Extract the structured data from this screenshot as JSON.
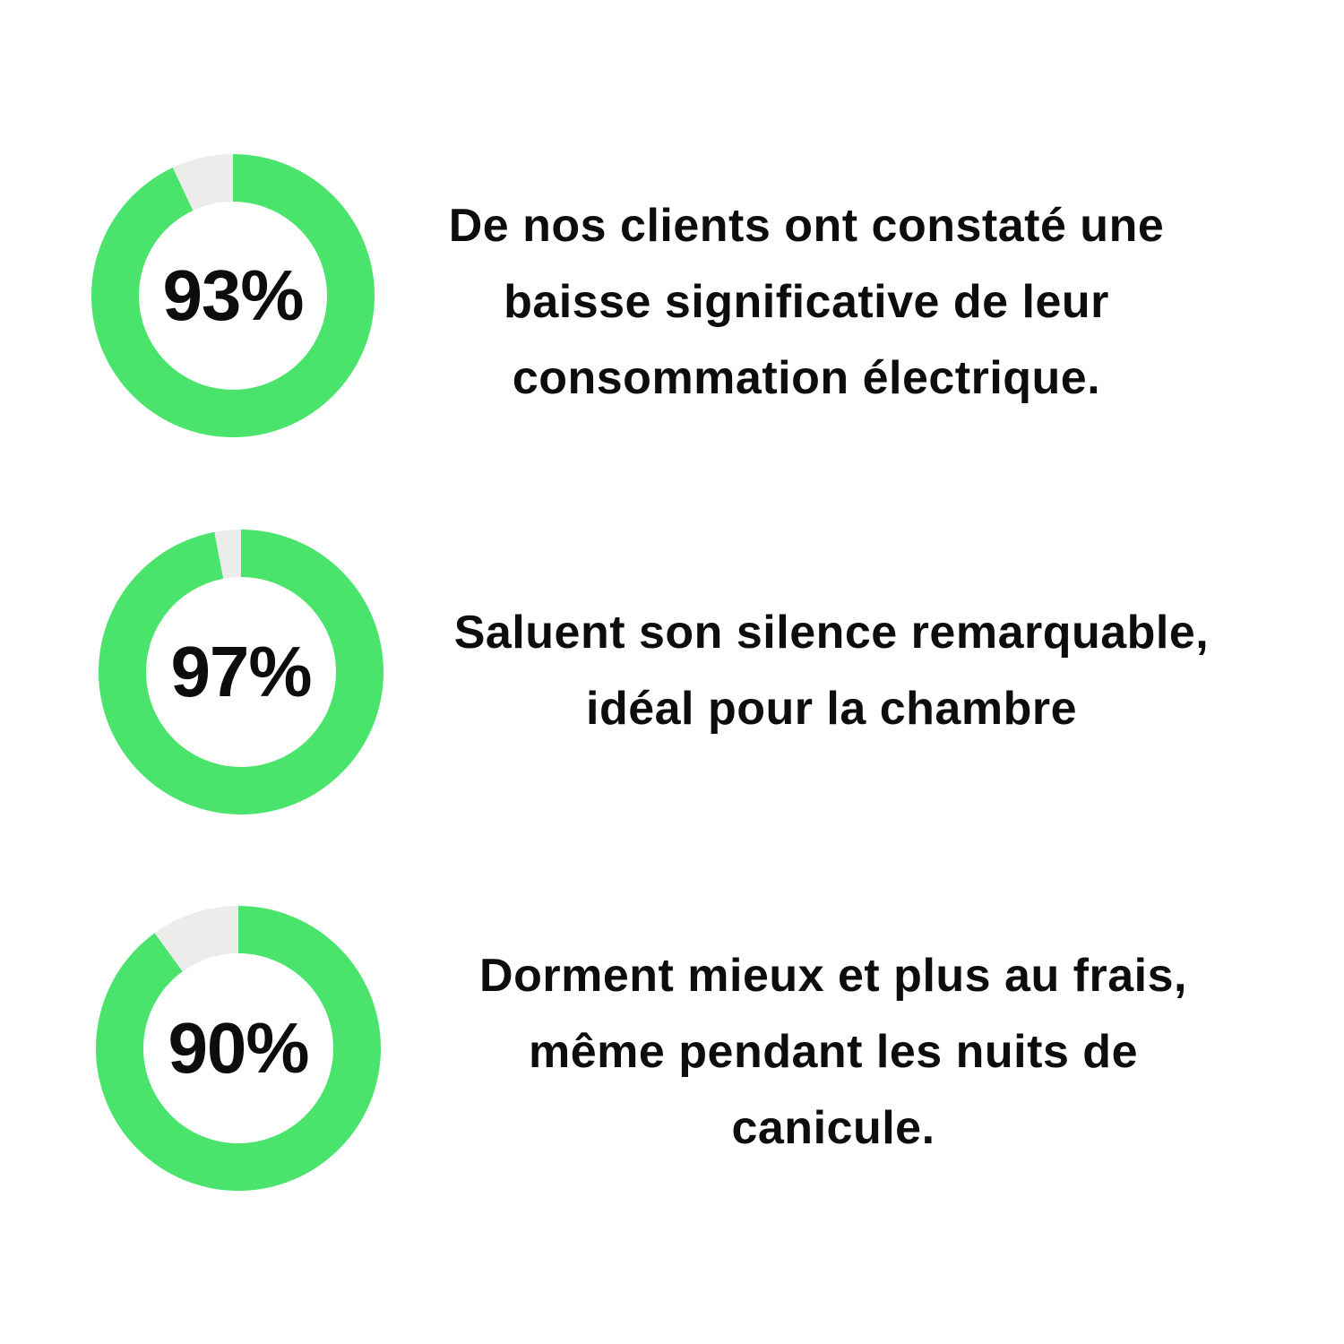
{
  "page": {
    "background": "#FFFFFF",
    "text_color": "#0D0D0D"
  },
  "chart_data": [
    {
      "type": "pie",
      "subtype": "donut",
      "values": [
        93,
        7
      ],
      "percent": 93,
      "center_label": "93%",
      "filled_color": "#4AE46C",
      "empty_color": "#ECECEA",
      "start_angle_deg": 0,
      "direction": "clockwise",
      "caption": "De nos clients ont constaté une baisse significative de leur consommation électrique.",
      "caption_lines": [
        "De nos clients ont constaté une",
        "baisse significative de leur",
        "consommation électrique."
      ]
    },
    {
      "type": "pie",
      "subtype": "donut",
      "values": [
        97,
        3
      ],
      "percent": 97,
      "center_label": "97%",
      "filled_color": "#4AE46C",
      "empty_color": "#ECECEA",
      "start_angle_deg": 0,
      "direction": "clockwise",
      "caption": "Saluent son silence remarquable, idéal pour la chambre",
      "caption_lines": [
        "Saluent son silence remarquable,",
        "idéal pour la chambre"
      ]
    },
    {
      "type": "pie",
      "subtype": "donut",
      "values": [
        90,
        10
      ],
      "percent": 90,
      "center_label": "90%",
      "filled_color": "#4AE46C",
      "empty_color": "#ECECEA",
      "start_angle_deg": 0,
      "direction": "clockwise",
      "caption": "Dorment mieux et plus au frais, même pendant les nuits de canicule.",
      "caption_lines": [
        "Dorment mieux et plus au frais,",
        "même pendant les nuits de",
        "canicule."
      ]
    }
  ]
}
